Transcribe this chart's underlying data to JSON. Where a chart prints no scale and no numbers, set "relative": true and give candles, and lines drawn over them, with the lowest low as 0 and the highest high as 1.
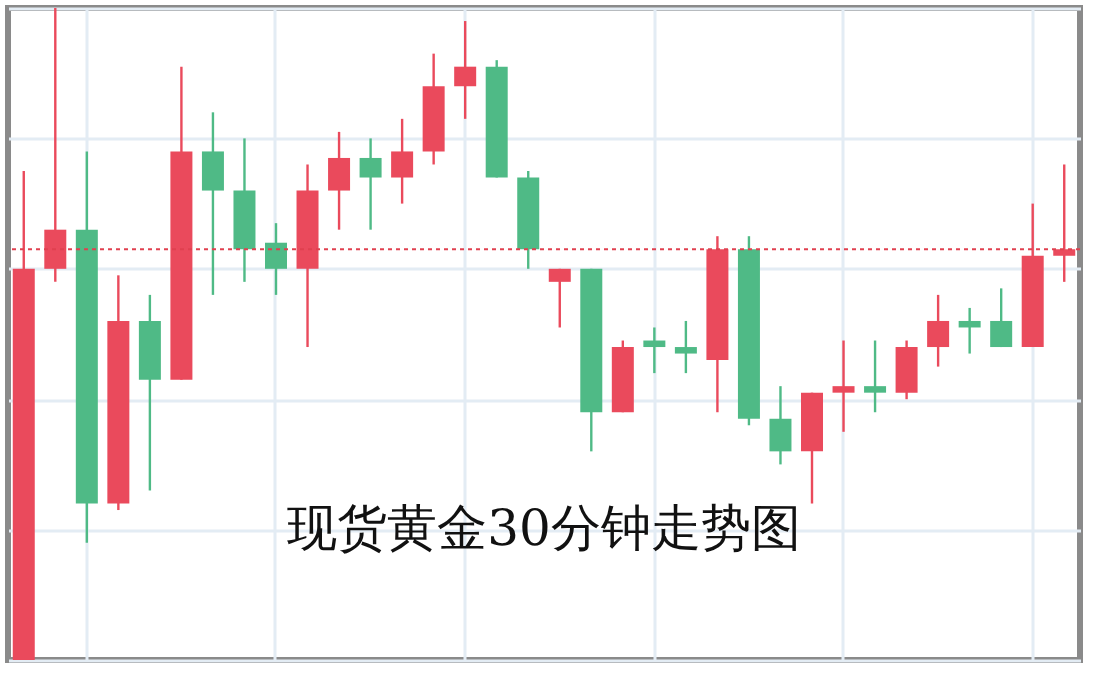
{
  "chart_data": {
    "type": "candlestick",
    "title": "现货黄金30分钟走势图",
    "relative": true,
    "grid": true,
    "categories": [
      null,
      null,
      null,
      null,
      null,
      null,
      null,
      null,
      null,
      null,
      null,
      null,
      null,
      null,
      null,
      null,
      null,
      null,
      null,
      null,
      null,
      null,
      null,
      null,
      null,
      null,
      null,
      null,
      null,
      null,
      null,
      null,
      null,
      null
    ],
    "ohlc": [
      [
        0,
        0.75,
        0,
        0.6
      ],
      [
        0.6,
        1,
        0.58,
        0.66
      ],
      [
        0.66,
        0.78,
        0.18,
        0.24
      ],
      [
        0.24,
        0.59,
        0.23,
        0.52
      ],
      [
        0.52,
        0.56,
        0.26,
        0.43
      ],
      [
        0.43,
        0.91,
        0.43,
        0.78
      ],
      [
        0.78,
        0.84,
        0.56,
        0.72
      ],
      [
        0.72,
        0.8,
        0.58,
        0.63
      ],
      [
        0.64,
        0.67,
        0.56,
        0.6
      ],
      [
        0.6,
        0.76,
        0.48,
        0.72
      ],
      [
        0.72,
        0.81,
        0.66,
        0.77
      ],
      [
        0.77,
        0.8,
        0.66,
        0.74
      ],
      [
        0.74,
        0.83,
        0.7,
        0.78
      ],
      [
        0.78,
        0.93,
        0.76,
        0.88
      ],
      [
        0.88,
        0.98,
        0.83,
        0.91
      ],
      [
        0.91,
        0.92,
        0.74,
        0.74
      ],
      [
        0.74,
        0.75,
        0.6,
        0.63
      ],
      [
        0.58,
        0.6,
        0.51,
        0.6
      ],
      [
        0.6,
        0.6,
        0.32,
        0.38
      ],
      [
        0.38,
        0.49,
        0.38,
        0.48
      ],
      [
        0.49,
        0.51,
        0.44,
        0.48
      ],
      [
        0.48,
        0.52,
        0.44,
        0.47
      ],
      [
        0.46,
        0.65,
        0.38,
        0.63
      ],
      [
        0.63,
        0.65,
        0.36,
        0.37
      ],
      [
        0.37,
        0.42,
        0.3,
        0.32
      ],
      [
        0.32,
        0.41,
        0.24,
        0.41
      ],
      [
        0.41,
        0.49,
        0.35,
        0.42
      ],
      [
        0.42,
        0.49,
        0.38,
        0.41
      ],
      [
        0.41,
        0.49,
        0.4,
        0.48
      ],
      [
        0.48,
        0.56,
        0.45,
        0.52
      ],
      [
        0.52,
        0.54,
        0.47,
        0.51
      ],
      [
        0.52,
        0.57,
        0.48,
        0.48
      ],
      [
        0.48,
        0.7,
        0.48,
        0.62
      ],
      [
        0.62,
        0.76,
        0.58,
        0.63
      ]
    ],
    "colors": [
      "#ea4a5c",
      "#ea4a5c",
      "#4fba86",
      "#ea4a5c",
      "#4fba86",
      "#ea4a5c",
      "#4fba86",
      "#4fba86",
      "#4fba86",
      "#ea4a5c",
      "#ea4a5c",
      "#4fba86",
      "#ea4a5c",
      "#ea4a5c",
      "#ea4a5c",
      "#4fba86",
      "#4fba86",
      "#ea4a5c",
      "#4fba86",
      "#ea4a5c",
      "#4fba86",
      "#4fba86",
      "#ea4a5c",
      "#4fba86",
      "#4fba86",
      "#ea4a5c",
      "#ea4a5c",
      "#4fba86",
      "#ea4a5c",
      "#ea4a5c",
      "#4fba86",
      "#4fba86",
      "#ea4a5c",
      "#ea4a5c"
    ],
    "ref_lines": [
      {
        "axis": "y",
        "value": 0.63,
        "color": "#e0404f",
        "line_style": "dotted"
      }
    ]
  }
}
